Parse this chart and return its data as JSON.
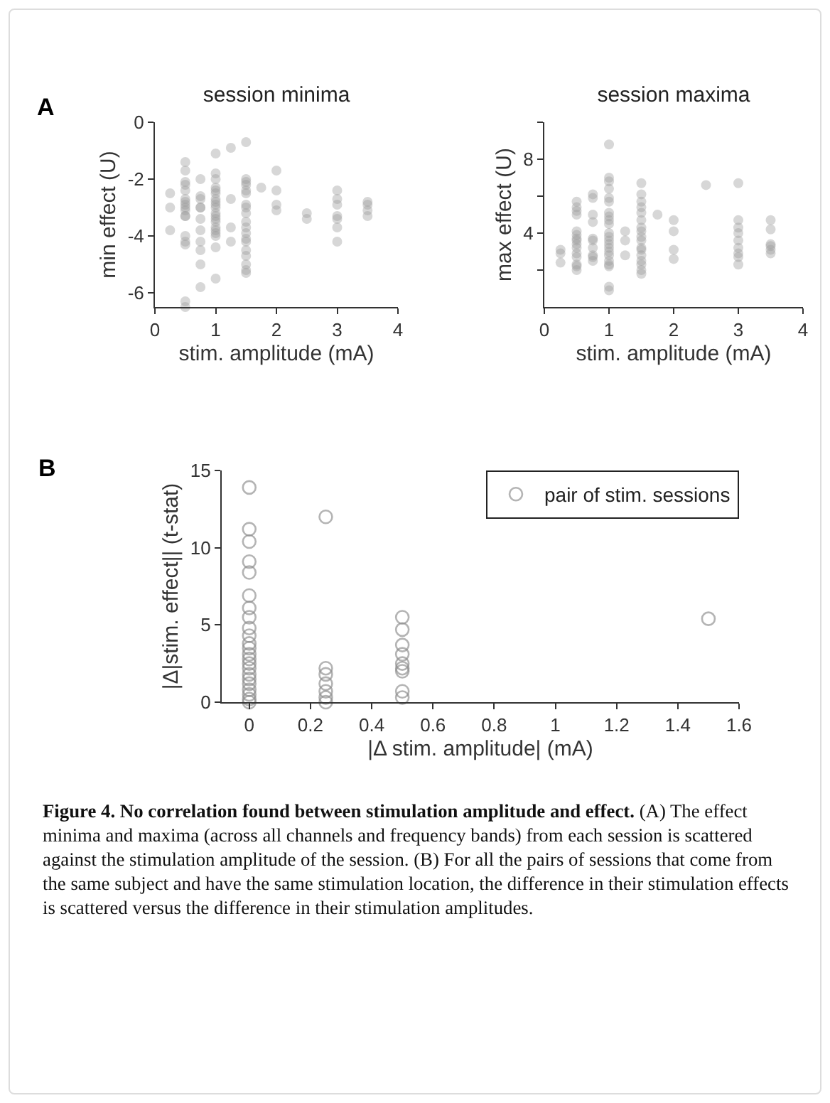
{
  "chart_data": [
    {
      "type": "scatter",
      "title": "session minima",
      "xlabel": "stim. amplitude (mA)",
      "ylabel": "min effect (U)",
      "annotations": [
        "A"
      ],
      "xlim": [
        0,
        4
      ],
      "xticks": [
        0,
        1,
        2,
        3,
        4
      ],
      "ylim": [
        -6.5,
        0
      ],
      "yticks": [
        -6,
        -4,
        -2,
        0
      ],
      "grid": false,
      "legend": false,
      "marker": "circle",
      "series": [
        {
          "color": "#9a9a9a",
          "x": [
            0.25,
            0.25,
            0.25,
            0.5,
            0.5,
            0.5,
            0.5,
            0.5,
            0.5,
            0.5,
            0.5,
            0.5,
            0.5,
            0.5,
            0.5,
            0.5,
            0.5,
            0.5,
            0.5,
            0.5,
            0.75,
            0.75,
            0.75,
            0.75,
            0.75,
            0.75,
            0.75,
            0.75,
            0.75,
            0.75,
            0.75,
            1,
            1,
            1,
            1,
            1,
            1,
            1,
            1,
            1,
            1,
            1,
            1,
            1,
            1,
            1,
            1,
            1,
            1,
            1,
            1,
            1.25,
            1.25,
            1.25,
            1.25,
            1.5,
            1.5,
            1.5,
            1.5,
            1.5,
            1.5,
            1.5,
            1.5,
            1.5,
            1.5,
            1.5,
            1.5,
            1.5,
            1.5,
            1.5,
            1.5,
            1.5,
            1.5,
            1.5,
            1.75,
            2,
            2,
            2,
            2,
            2.5,
            2.5,
            3,
            3,
            3,
            3,
            3,
            3,
            3,
            3.5,
            3.5,
            3.5,
            3.5
          ],
          "values": [
            -2.5,
            -3,
            -3.8,
            -1.4,
            -1.7,
            -2.1,
            -2.2,
            -2.4,
            -2.7,
            -2.8,
            -2.9,
            -3,
            -3.1,
            -3.3,
            -3.3,
            -4,
            -4.2,
            -4.3,
            -6.3,
            -6.5,
            -2,
            -2.6,
            -2.7,
            -3,
            -3,
            -3.4,
            -3.8,
            -4.2,
            -4.5,
            -5,
            -5.8,
            -1.1,
            -1.8,
            -2,
            -2.3,
            -2.4,
            -2.5,
            -2.7,
            -2.8,
            -2.9,
            -3,
            -3.2,
            -3.3,
            -3.4,
            -3.5,
            -3.7,
            -3.8,
            -3.9,
            -4,
            -4.4,
            -5.5,
            -0.9,
            -2.7,
            -3.7,
            -4.2,
            -0.7,
            -2,
            -2.1,
            -2.2,
            -2.4,
            -2.5,
            -2.9,
            -3,
            -3.2,
            -3.5,
            -3.7,
            -3.9,
            -4.1,
            -4.2,
            -4.5,
            -4.7,
            -5,
            -5.2,
            -5.3,
            -2.3,
            -1.7,
            -2.4,
            -2.9,
            -3.1,
            -3.2,
            -3.4,
            -2.4,
            -2.7,
            -2.9,
            -3.3,
            -3.4,
            -3.7,
            -4.2,
            -2.8,
            -2.9,
            -3.1,
            -3.3
          ]
        }
      ]
    },
    {
      "type": "scatter",
      "title": "session maxima",
      "xlabel": "stim. amplitude (mA)",
      "ylabel": "max effect (U)",
      "xlim": [
        0,
        4
      ],
      "xticks": [
        0,
        1,
        2,
        3,
        4
      ],
      "ylim": [
        0,
        10
      ],
      "yticks": [
        {
          "value": 2,
          "label": null
        },
        4,
        {
          "value": 6,
          "label": null
        },
        8,
        {
          "value": 10,
          "label": null
        }
      ],
      "grid": false,
      "legend": false,
      "marker": "circle",
      "series": [
        {
          "color": "#9a9a9a",
          "x": [
            0.25,
            0.25,
            0.25,
            0.5,
            0.5,
            0.5,
            0.5,
            0.5,
            0.5,
            0.5,
            0.5,
            0.5,
            0.5,
            0.5,
            0.5,
            0.5,
            0.5,
            0.5,
            0.75,
            0.75,
            0.75,
            0.75,
            0.75,
            0.75,
            0.75,
            0.75,
            0.75,
            0.75,
            1,
            1,
            1,
            1,
            1,
            1,
            1,
            1,
            1,
            1,
            1,
            1,
            1,
            1,
            1,
            1,
            1,
            1,
            1,
            1,
            1,
            1,
            1.25,
            1.25,
            1.25,
            1.5,
            1.5,
            1.5,
            1.5,
            1.5,
            1.5,
            1.5,
            1.5,
            1.5,
            1.5,
            1.5,
            1.5,
            1.5,
            1.5,
            1.5,
            1.5,
            1.5,
            1.75,
            2,
            2,
            2,
            2,
            2.5,
            3,
            3,
            3,
            3,
            3,
            3,
            3,
            3,
            3,
            3.5,
            3.5,
            3.5,
            3.5,
            3.5,
            3.5
          ],
          "values": [
            3.1,
            2.9,
            2.4,
            5.7,
            5.4,
            5.2,
            5,
            4.1,
            3.9,
            3.7,
            3.6,
            3.4,
            3.2,
            2.9,
            2.7,
            2.3,
            2.2,
            2,
            6.1,
            5.9,
            5,
            4.6,
            3.7,
            3.6,
            3.2,
            2.8,
            2.7,
            2.5,
            8.8,
            7,
            6.8,
            6.4,
            5.9,
            5.7,
            5.1,
            4.9,
            4.7,
            4.5,
            4,
            3.8,
            3.6,
            3.4,
            3.2,
            3,
            2.8,
            2.5,
            2.3,
            2.2,
            1.1,
            0.9,
            4.1,
            3.6,
            2.8,
            6.7,
            6.1,
            5.7,
            5.4,
            5.1,
            4.7,
            4.3,
            4.1,
            3.8,
            3.6,
            3.2,
            3.1,
            2.8,
            2.5,
            2.3,
            2,
            1.8,
            5,
            4.7,
            4.1,
            3.1,
            2.6,
            6.6,
            6.7,
            4.7,
            4.3,
            4,
            3.6,
            3.2,
            2.9,
            2.7,
            2.3,
            4.7,
            4.2,
            3.4,
            3.3,
            3.1,
            2.9
          ]
        }
      ]
    },
    {
      "type": "scatter",
      "xlabel": "|Δ stim. amplitude| (mA)",
      "ylabel": "|Δ|stim. effect|| (t-stat)",
      "annotations": [
        "B",
        "Figure 4. No correlation found between stimulation amplitude and effect.",
        "(A) The effect minima and maxima (across all channels and frequency bands) from each session is scattered against the stimulation amplitude of the session. (B) For all the pairs of sessions that come from the same subject and have the same stimulation location, the difference in their stimulation effects is scattered versus the difference in their stimulation amplitudes."
      ],
      "xlim": [
        -0.09,
        1.6
      ],
      "xticks": [
        0,
        0.2,
        0.4,
        0.6,
        0.8,
        1,
        1.2,
        1.4,
        1.6
      ],
      "ylim": [
        0,
        15
      ],
      "yticks": [
        0,
        5,
        10,
        15
      ],
      "grid": false,
      "legend": "top right",
      "marker": "circle",
      "series": [
        {
          "name": "pair of stim. sessions",
          "color": "#8c8c8c",
          "x": [
            0,
            0,
            0,
            0,
            0,
            0,
            0,
            0,
            0,
            0,
            0,
            0,
            0,
            0,
            0,
            0,
            0,
            0,
            0,
            0,
            0,
            0,
            0,
            0.25,
            0.25,
            0.25,
            0.25,
            0.25,
            0.25,
            0.25,
            0.5,
            0.5,
            0.5,
            0.5,
            0.5,
            0.5,
            0.5,
            0.5,
            0.5,
            1.5
          ],
          "values": [
            13.9,
            11.2,
            10.4,
            9.1,
            8.4,
            6.9,
            6.1,
            5.5,
            4.8,
            4.3,
            3.8,
            3.5,
            3.1,
            2.8,
            2.5,
            2.2,
            1.8,
            1.5,
            1.2,
            0.8,
            0.5,
            0.2,
            0,
            12,
            2.2,
            1.8,
            1.2,
            0.7,
            0.3,
            0,
            5.5,
            4.7,
            3.7,
            3.1,
            2.5,
            2.2,
            2,
            0.7,
            0.3,
            5.4
          ]
        }
      ]
    }
  ]
}
